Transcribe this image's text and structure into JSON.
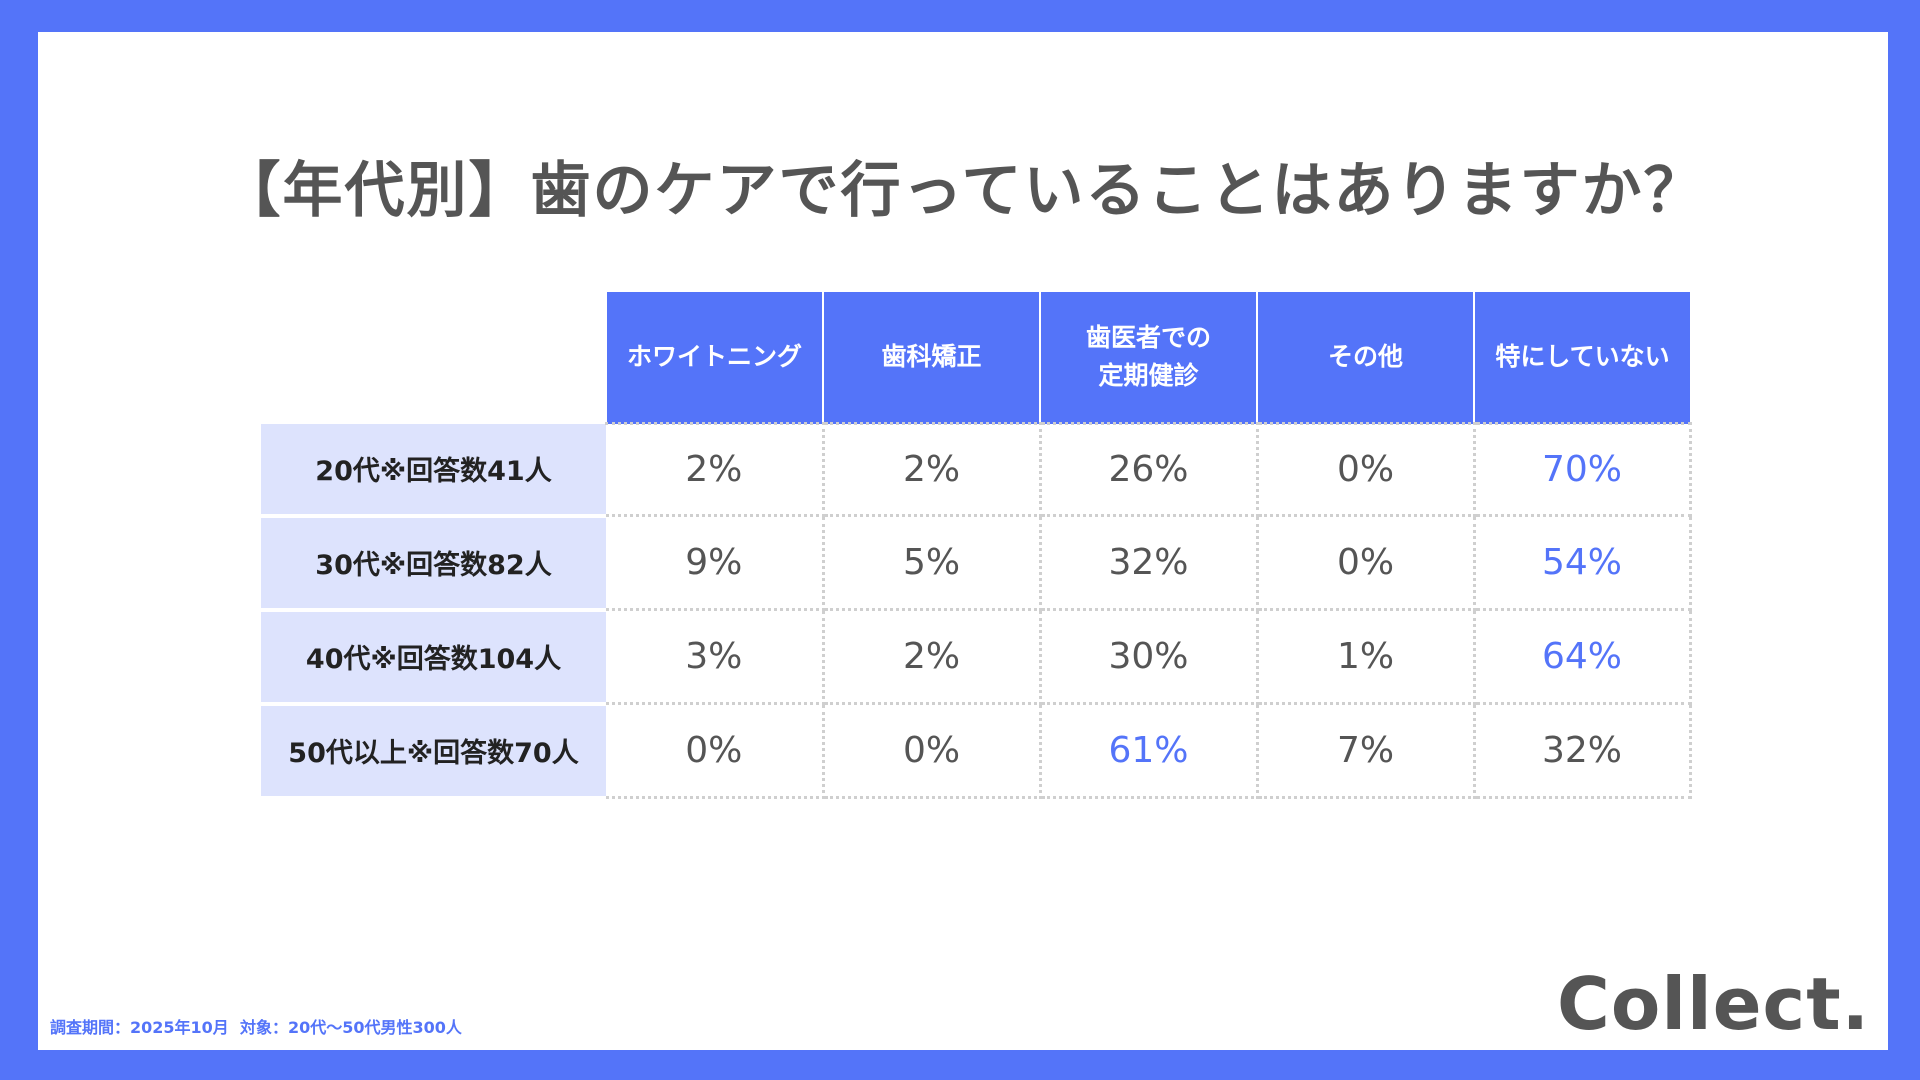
{
  "title": "【年代別】歯のケアで行っていることはありますか？",
  "chart_data": {
    "type": "table",
    "columns": [
      "ホワイトニング",
      "歯科矯正",
      "歯医者での\n定期健診",
      "その他",
      "特にしていない"
    ],
    "rows": [
      {
        "label": "20代※回答数41人",
        "values": [
          "2%",
          "2%",
          "26%",
          "0%",
          "70%"
        ],
        "highlight_index": 4
      },
      {
        "label": "30代※回答数82人",
        "values": [
          "9%",
          "5%",
          "32%",
          "0%",
          "54%"
        ],
        "highlight_index": 4
      },
      {
        "label": "40代※回答数104人",
        "values": [
          "3%",
          "2%",
          "30%",
          "1%",
          "64%"
        ],
        "highlight_index": 4
      },
      {
        "label": "50代以上※回答数70人",
        "values": [
          "0%",
          "0%",
          "61%",
          "7%",
          "32%"
        ],
        "highlight_index": 2
      }
    ]
  },
  "footnote": "調査期間：2025年10月  対象：20代〜50代男性300人",
  "logo": "Collect.",
  "colors": {
    "accent": "#5474f9",
    "row_header_bg": "#dde3fd",
    "text": "#555555"
  }
}
